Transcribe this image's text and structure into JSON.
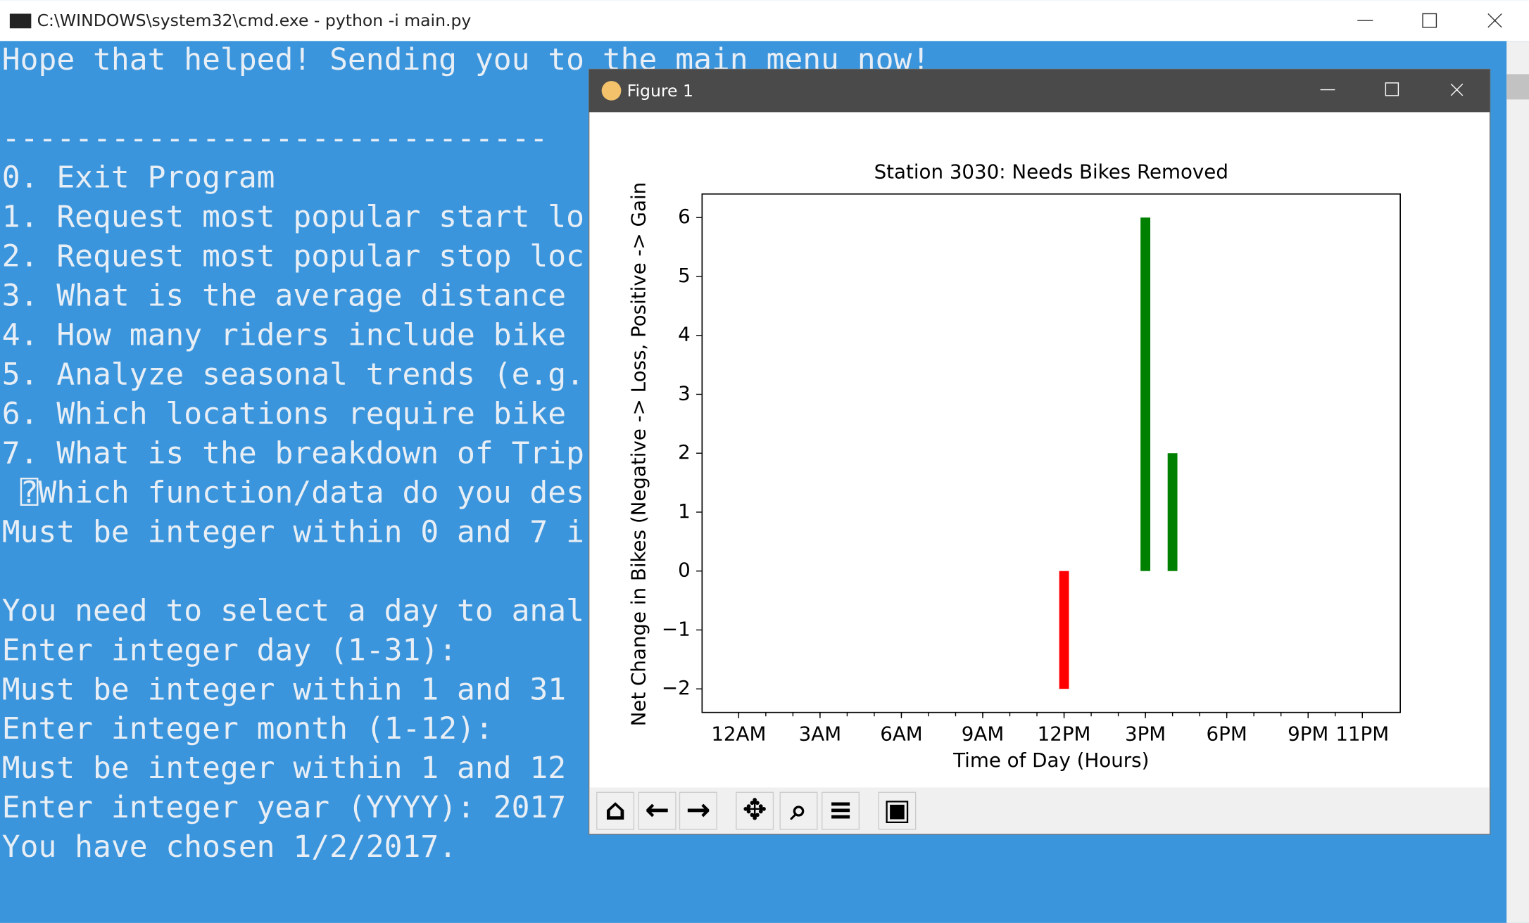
{
  "console": {
    "title": "C:\\WINDOWS\\system32\\cmd.exe - python  -i main.py",
    "lines": [
      "Hope that helped! Sending you to the main menu now!",
      "------------------------------",
      "0. Exit Program",
      "1. Request most popular start lo",
      "2. Request most popular stop loc",
      "3. What is the average distance",
      "4. How many riders include bike",
      "5. Analyze seasonal trends (e.g.",
      "6. Which locations require bike",
      "7. What is the breakdown of Trip",
      " ⍰Which function/data do you des",
      "Must be integer within 0 and 7 i",
      "You need to select a day to anal",
      "Enter integer day (1-31):",
      "Must be integer within 1 and 31",
      "Enter integer month (1-12):",
      "Must be integer within 1 and 12",
      "Enter integer year (YYYY): 2017",
      "You have chosen 1/2/2017."
    ]
  },
  "figure": {
    "title": "Figure 1"
  },
  "chart_data": {
    "type": "bar",
    "title": "Station 3030: Needs Bikes Removed",
    "x_label": "Time of Day (Hours)",
    "y_label": "Net Change in Bikes (Negative -> Loss, Positive -> Gain",
    "x": [
      12,
      15,
      16
    ],
    "values": [
      -2,
      6,
      2
    ],
    "colors": [
      "red",
      "green",
      "green"
    ],
    "xlim": [
      -1.35,
      24.4
    ],
    "ylim": [
      -2.4,
      6.4
    ],
    "xticks": [
      {
        "value": 0,
        "label": "12AM"
      },
      {
        "value": 3,
        "label": "3AM"
      },
      {
        "value": 6,
        "label": "6AM"
      },
      {
        "value": 9,
        "label": "9AM"
      },
      {
        "value": 12,
        "label": "12PM"
      },
      {
        "value": 15,
        "label": "3PM"
      },
      {
        "value": 18,
        "label": "6PM"
      },
      {
        "value": 21,
        "label": "9PM"
      },
      {
        "value": 23,
        "label": "11PM"
      }
    ],
    "x_minor_ticks": [
      0,
      1,
      2,
      3,
      4,
      5,
      6,
      7,
      8,
      9,
      10,
      11,
      12,
      13,
      14,
      15,
      16,
      17,
      18,
      19,
      20,
      21,
      22,
      23
    ],
    "yticks": [
      {
        "value": -2,
        "label": "−2"
      },
      {
        "value": -1,
        "label": "−1"
      },
      0,
      1,
      2,
      3,
      4,
      5,
      6
    ]
  }
}
